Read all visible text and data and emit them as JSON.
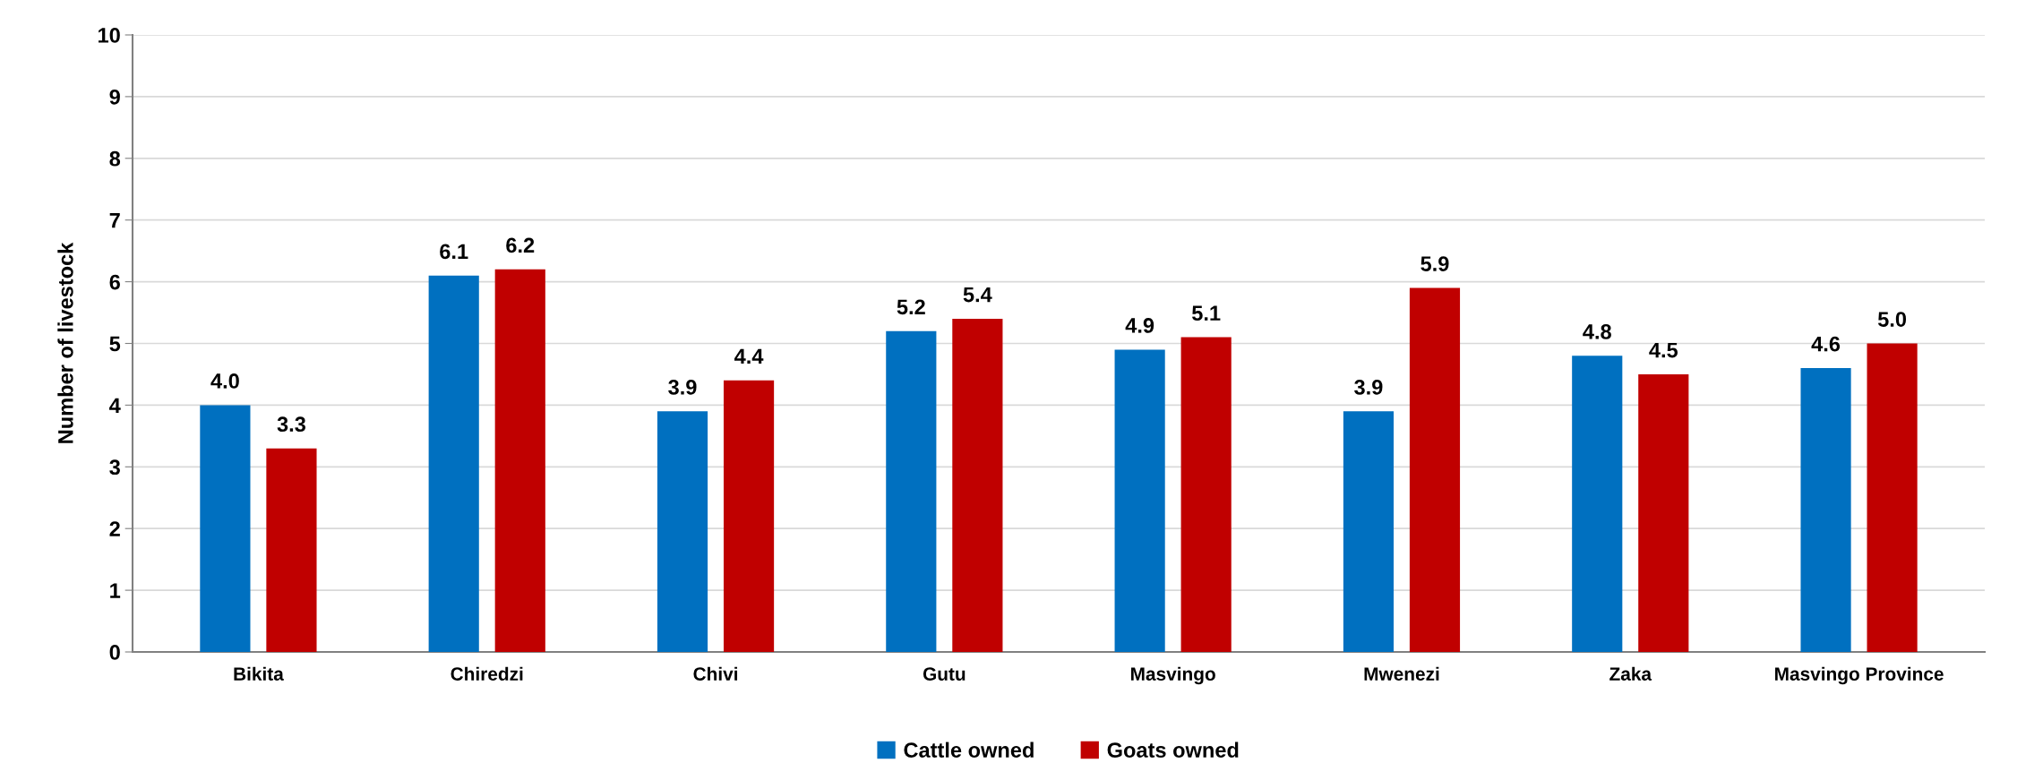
{
  "chart_data": {
    "type": "bar",
    "ylabel": "Number of livestock",
    "categories": [
      "Bikita",
      "Chiredzi",
      "Chivi",
      "Gutu",
      "Masvingo",
      "Mwenezi",
      "Zaka",
      "Masvingo Province"
    ],
    "series": [
      {
        "name": "Cattle owned",
        "color": "#0070c0",
        "values": [
          4.0,
          6.1,
          3.9,
          5.2,
          4.9,
          3.9,
          4.8,
          4.6
        ],
        "value_labels": [
          "4.0",
          "6.1",
          "3.9",
          "5.2",
          "4.9",
          "3.9",
          "4.8",
          "4.6"
        ]
      },
      {
        "name": "Goats owned",
        "color": "#c00000",
        "values": [
          3.3,
          6.2,
          4.4,
          5.4,
          5.1,
          5.9,
          4.5,
          5.0
        ],
        "value_labels": [
          "3.3",
          "6.2",
          "4.4",
          "5.4",
          "5.1",
          "5.9",
          "4.5",
          "5.0"
        ]
      }
    ],
    "ylim": [
      0,
      10
    ],
    "yticks": [
      0,
      1,
      2,
      3,
      4,
      5,
      6,
      7,
      8,
      9,
      10
    ],
    "grid": "y",
    "legend": "bottom"
  }
}
